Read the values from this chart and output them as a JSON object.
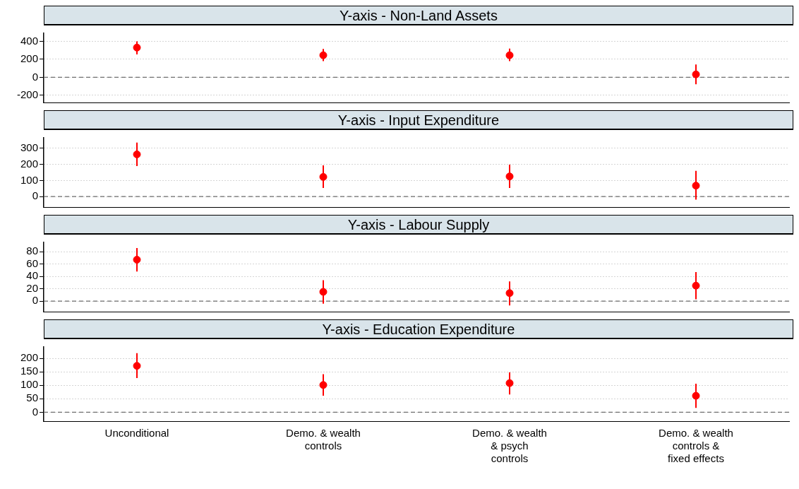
{
  "chart_data": [
    {
      "type": "scatter",
      "title": "Y-axis - Non-Land Assets",
      "categories": [
        null,
        null,
        null,
        null
      ],
      "values": [
        330,
        245,
        245,
        32
      ],
      "errors": [
        [
          255,
          400
        ],
        [
          180,
          316
        ],
        [
          180,
          320
        ],
        [
          -77,
          142
        ]
      ],
      "color": "#ff0000",
      "marker": "circle",
      "ylim": [
        -280,
        490
      ],
      "yticks": [
        -200,
        0,
        200,
        400
      ],
      "grid": "y",
      "tick_labels": "y",
      "ref_lines": [
        {
          "axis": "y",
          "value": 0,
          "color": "#6e6e6e",
          "line_style": "dashed"
        }
      ]
    },
    {
      "type": "scatter",
      "title": "Y-axis - Input Expenditure",
      "categories": [
        null,
        null,
        null,
        null
      ],
      "values": [
        262,
        122,
        125,
        68
      ],
      "errors": [
        [
          190,
          335
        ],
        [
          53,
          194
        ],
        [
          53,
          198
        ],
        [
          -19,
          160
        ]
      ],
      "color": "#ff0000",
      "marker": "circle",
      "ylim": [
        -65,
        365
      ],
      "yticks": [
        0,
        100,
        200,
        300
      ],
      "grid": "y",
      "tick_labels": "y",
      "ref_lines": [
        {
          "axis": "y",
          "value": 0,
          "color": "#6e6e6e",
          "line_style": "dashed"
        }
      ]
    },
    {
      "type": "scatter",
      "title": "Y-axis - Labour Supply",
      "categories": [
        null,
        null,
        null,
        null
      ],
      "values": [
        67,
        15,
        13,
        25
      ],
      "errors": [
        [
          48,
          86
        ],
        [
          -4,
          34
        ],
        [
          -7,
          32
        ],
        [
          3,
          47
        ]
      ],
      "color": "#ff0000",
      "marker": "circle",
      "ylim": [
        -17,
        95
      ],
      "yticks": [
        0,
        20,
        40,
        60,
        80
      ],
      "grid": "y",
      "tick_labels": "y",
      "ref_lines": [
        {
          "axis": "y",
          "value": 0,
          "color": "#6e6e6e",
          "line_style": "dashed"
        }
      ]
    },
    {
      "type": "scatter",
      "title": "Y-axis - Education Expenditure",
      "categories": [
        "Unconditional",
        "Demo. & wealth\ncontrols",
        "Demo. & wealth\n& psych\ncontrols",
        "Demo. & wealth\ncontrols &\nfixed effects"
      ],
      "values": [
        172,
        101,
        108,
        61
      ],
      "errors": [
        [
          127,
          219
        ],
        [
          61,
          141
        ],
        [
          66,
          148
        ],
        [
          16,
          106
        ]
      ],
      "color": "#ff0000",
      "marker": "circle",
      "ylim": [
        -33,
        242
      ],
      "yticks": [
        0,
        50,
        100,
        150,
        200
      ],
      "grid": "y",
      "ref_lines": [
        {
          "axis": "y",
          "value": 0,
          "color": "#6e6e6e",
          "line_style": "dashed"
        }
      ]
    }
  ]
}
